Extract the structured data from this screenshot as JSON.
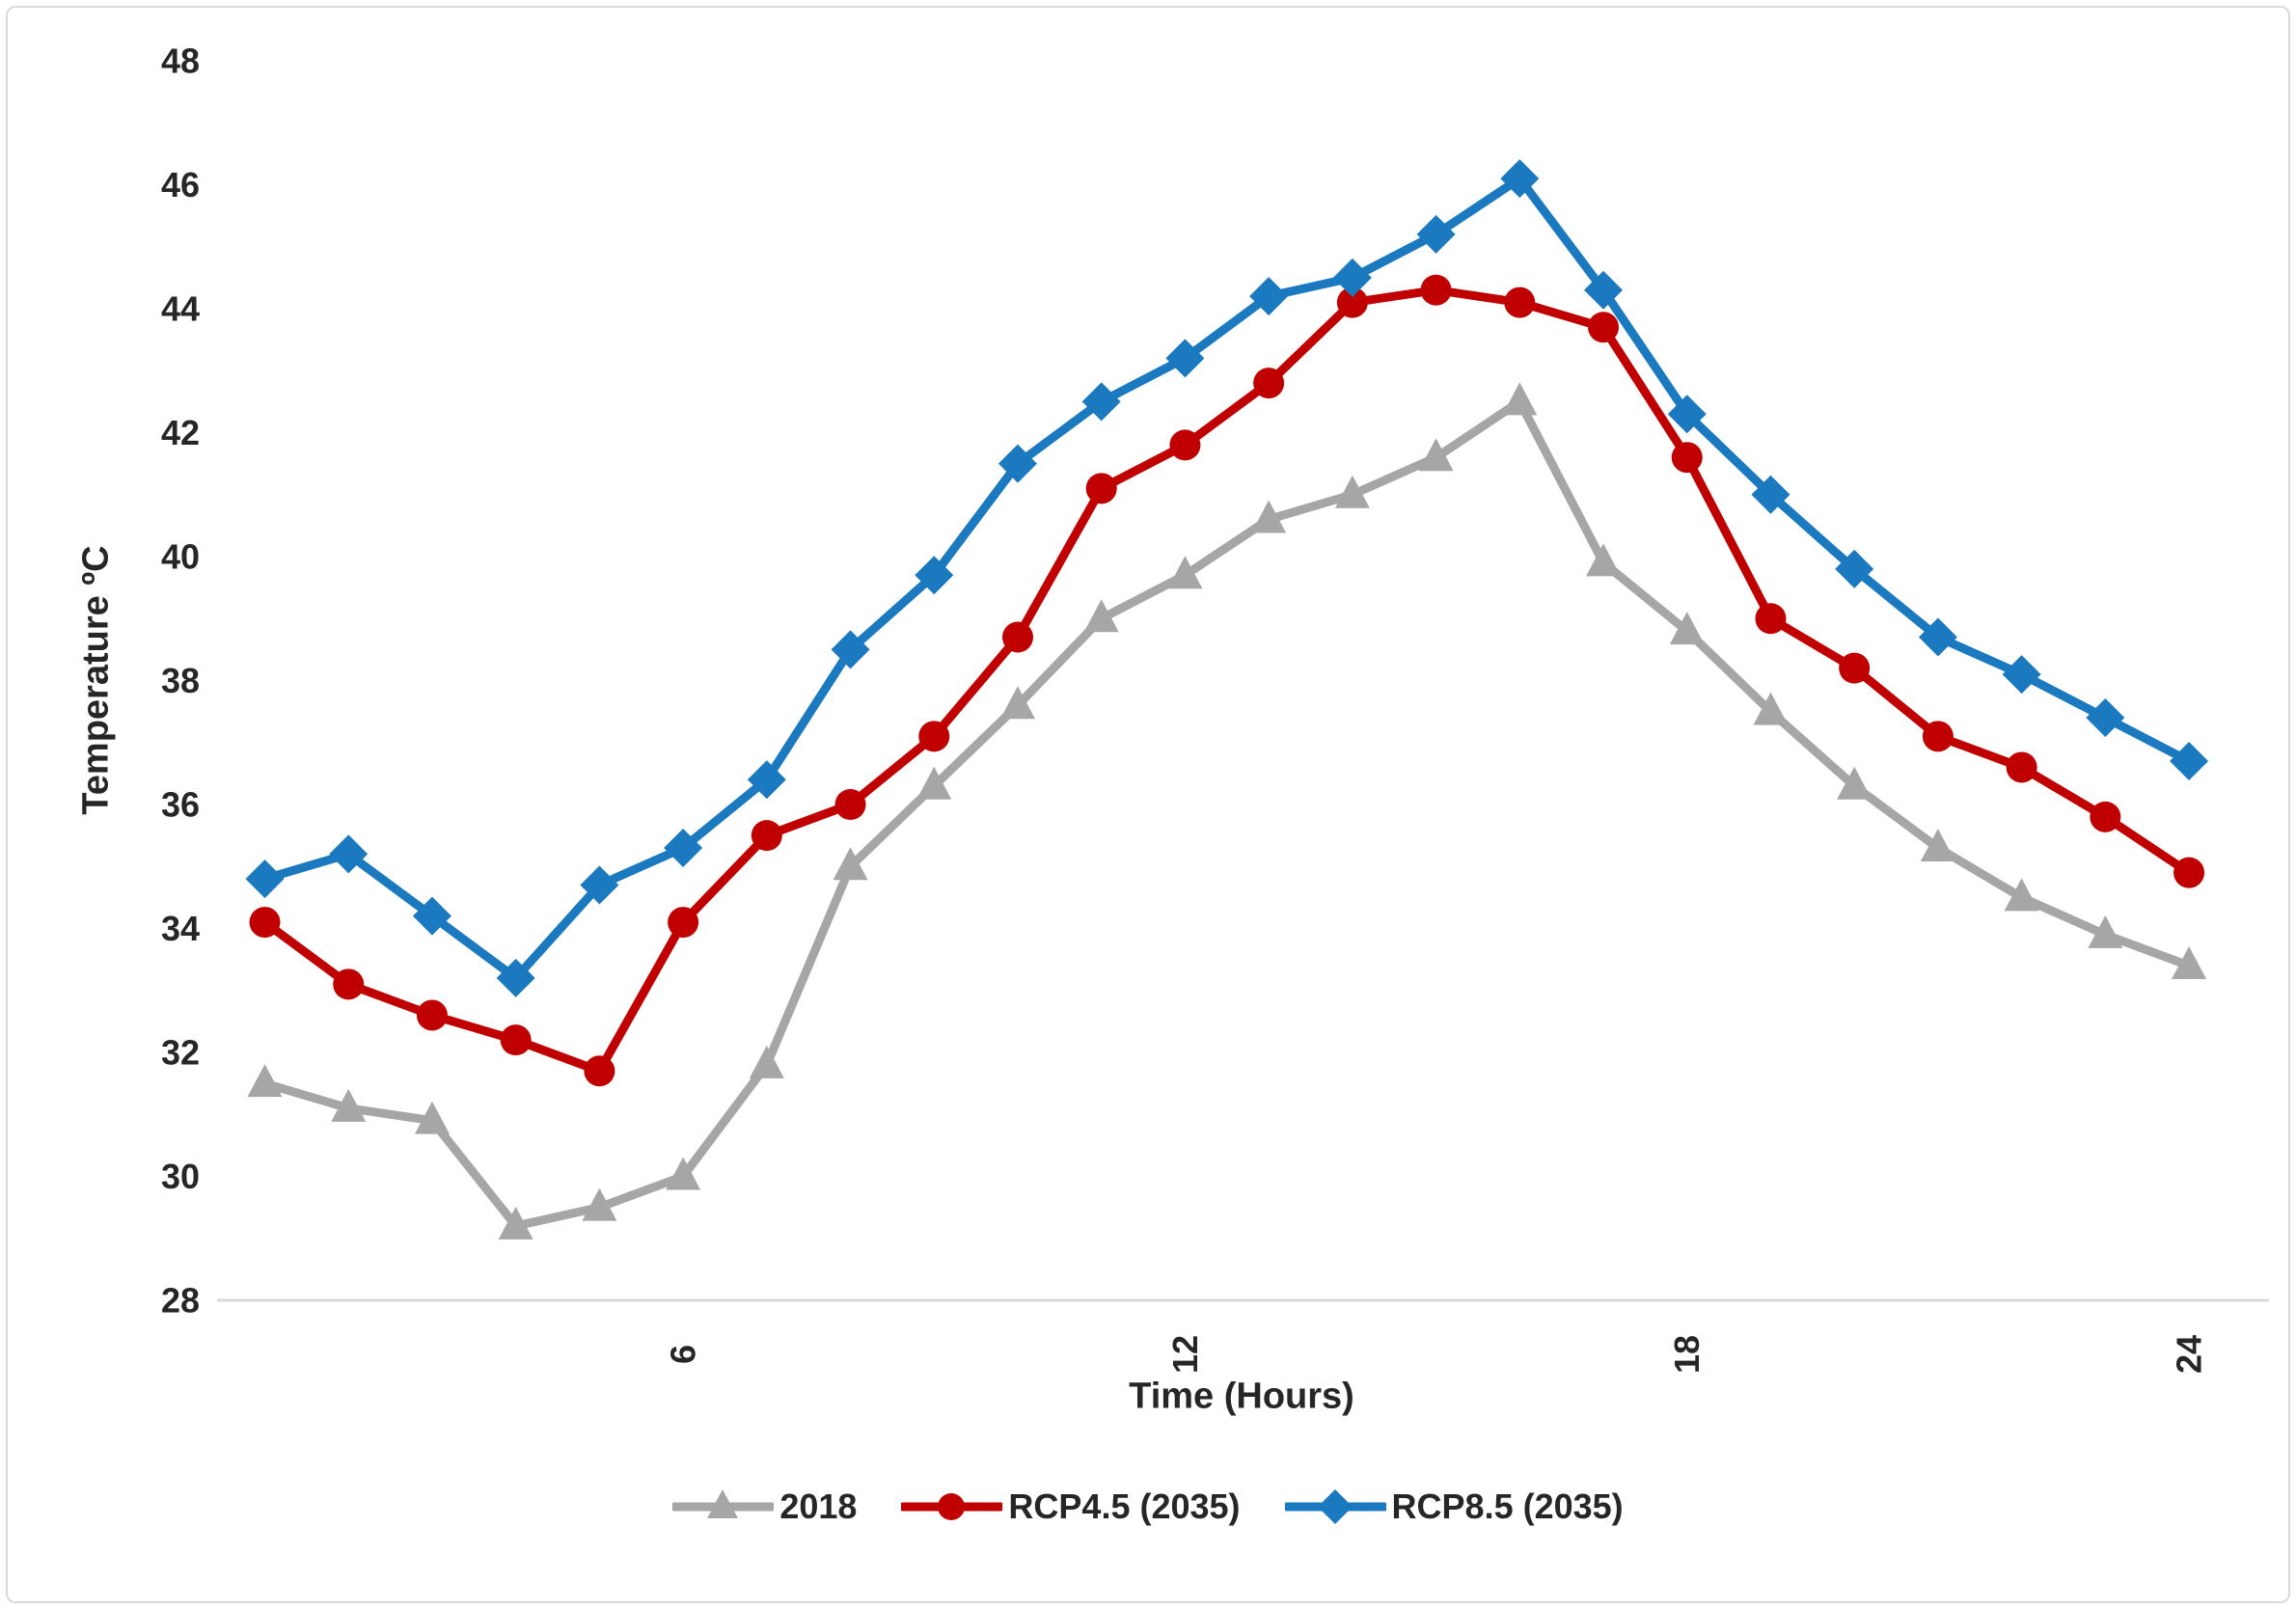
{
  "figure": {
    "background": "#ffffff",
    "border_color": "#d9d9d9",
    "axis_line_color": "#d9d9d9",
    "text_color": "#262626"
  },
  "chart_data": {
    "type": "line",
    "title": "",
    "xlabel": "Time (Hours)",
    "ylabel": "Temperature ºC",
    "x": [
      1,
      2,
      3,
      4,
      5,
      6,
      7,
      8,
      9,
      10,
      11,
      12,
      13,
      14,
      15,
      16,
      17,
      18,
      19,
      20,
      21,
      22,
      23,
      24
    ],
    "x_ticks": [
      6,
      12,
      18,
      24
    ],
    "x_tick_rotation": -90,
    "ylim": [
      28,
      48
    ],
    "y_ticks": [
      28,
      30,
      32,
      34,
      36,
      38,
      40,
      42,
      44,
      46,
      48
    ],
    "grid": false,
    "legend_position": "bottom",
    "series": [
      {
        "name": "2018",
        "color": "#a6a6a6",
        "marker": "triangle",
        "values": [
          31.5,
          31.1,
          30.9,
          29.2,
          29.5,
          30.0,
          31.8,
          35.0,
          36.3,
          37.6,
          39.0,
          39.7,
          40.6,
          41.0,
          41.6,
          42.5,
          39.9,
          38.8,
          37.5,
          36.3,
          35.3,
          34.5,
          33.9,
          33.4
        ]
      },
      {
        "name": "RCP4.5 (2035)",
        "color": "#c00000",
        "marker": "circle",
        "values": [
          34.1,
          33.1,
          32.6,
          32.2,
          31.7,
          34.1,
          35.5,
          36.0,
          37.1,
          38.7,
          41.1,
          41.8,
          42.8,
          44.1,
          44.3,
          44.1,
          43.7,
          41.6,
          39.0,
          38.2,
          37.1,
          36.6,
          35.8,
          34.9
        ]
      },
      {
        "name": "RCP8.5 (2035)",
        "color": "#1b79c0",
        "marker": "diamond",
        "values": [
          34.8,
          35.2,
          34.2,
          33.2,
          34.7,
          35.3,
          36.4,
          38.5,
          39.7,
          41.5,
          42.5,
          43.2,
          44.2,
          44.5,
          45.2,
          46.1,
          44.3,
          42.3,
          41.0,
          39.8,
          38.7,
          38.1,
          37.4,
          36.7
        ]
      }
    ]
  }
}
